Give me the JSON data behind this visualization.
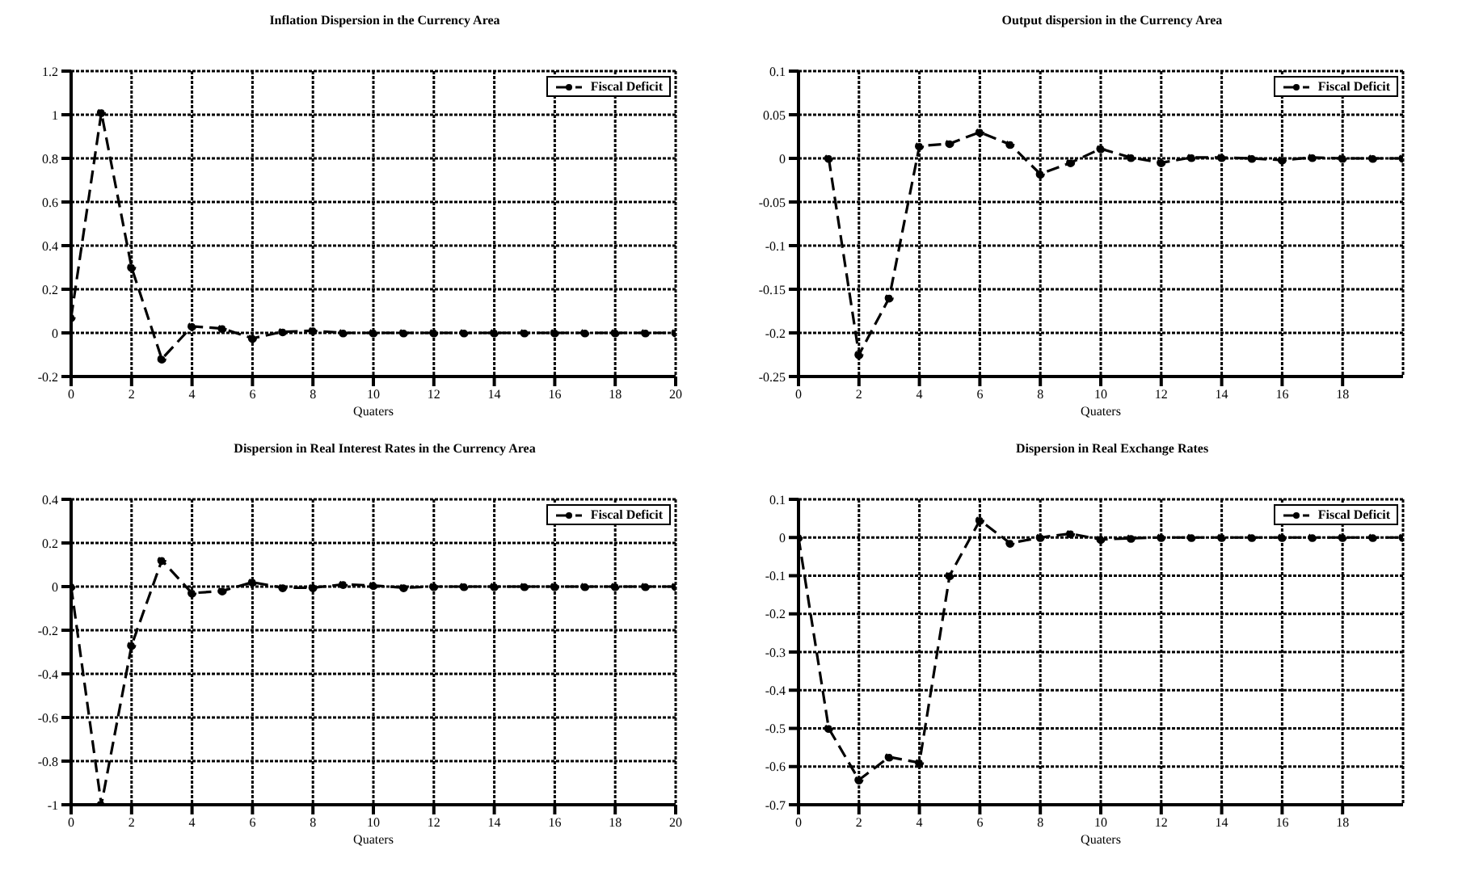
{
  "chart_data": [
    {
      "type": "line",
      "title": "Inflation Dispersion in the Currency Area",
      "xlabel": "Quaters",
      "x": [
        0,
        1,
        2,
        3,
        4,
        5,
        6,
        7,
        8,
        9,
        10,
        11,
        12,
        13,
        14,
        15,
        16,
        17,
        18,
        19,
        20
      ],
      "series": [
        {
          "name": "Fiscal Deficit",
          "color": "#000000",
          "values": [
            0.07,
            1.01,
            0.3,
            -0.12,
            0.03,
            0.02,
            -0.025,
            0.005,
            0.01,
            0,
            0,
            0,
            0,
            0,
            0,
            0,
            0,
            0,
            0,
            0,
            0
          ]
        }
      ],
      "xlim": [
        0,
        20
      ],
      "xticks": [
        0,
        2,
        4,
        6,
        8,
        10,
        12,
        14,
        16,
        18,
        20
      ],
      "ylim": [
        -0.2,
        1.2
      ],
      "yticks": [
        -0.2,
        0,
        0.2,
        0.4,
        0.6,
        0.8,
        1,
        1.2
      ],
      "grid": true,
      "legend": "top right",
      "marker": "circle",
      "line_style": "dashed"
    },
    {
      "type": "line",
      "title": "Output dispersion in the Currency Area",
      "xlabel": "Quaters",
      "x": [
        1,
        2,
        3,
        4,
        5,
        6,
        7,
        8,
        9,
        10,
        11,
        12,
        13,
        14,
        15,
        16,
        17,
        18,
        19,
        20
      ],
      "series": [
        {
          "name": "Fiscal Deficit",
          "color": "#000000",
          "values": [
            0,
            -0.225,
            -0.16,
            0.014,
            0.017,
            0.03,
            0.016,
            -0.018,
            -0.005,
            0.011,
            0.001,
            -0.005,
            0.001,
            0.001,
            0,
            -0.002,
            0.001,
            0,
            0,
            0
          ]
        }
      ],
      "xlim": [
        0,
        20
      ],
      "xticks": [
        0,
        2,
        4,
        6,
        8,
        10,
        12,
        14,
        16,
        18
      ],
      "ylim": [
        -0.25,
        0.1
      ],
      "yticks": [
        -0.25,
        -0.2,
        -0.15,
        -0.1,
        -0.05,
        0,
        0.05,
        0.1
      ],
      "grid": true,
      "legend": "top right",
      "marker": "circle",
      "line_style": "dashed"
    },
    {
      "type": "line",
      "title": "Dispersion in Real Interest Rates in the Currency Area",
      "xlabel": "Quaters",
      "x": [
        0,
        1,
        2,
        3,
        4,
        5,
        6,
        7,
        8,
        9,
        10,
        11,
        12,
        13,
        14,
        15,
        16,
        17,
        18,
        19,
        20
      ],
      "series": [
        {
          "name": "Fiscal Deficit",
          "color": "#000000",
          "values": [
            0,
            -1,
            -0.27,
            0.12,
            -0.03,
            -0.02,
            0.02,
            -0.005,
            -0.005,
            0.01,
            0.005,
            -0.005,
            0,
            0,
            0,
            0,
            0,
            0,
            0,
            0,
            0
          ]
        }
      ],
      "xlim": [
        0,
        20
      ],
      "xticks": [
        0,
        2,
        4,
        6,
        8,
        10,
        12,
        14,
        16,
        18,
        20
      ],
      "ylim": [
        -1,
        0.4
      ],
      "yticks": [
        -1,
        -0.8,
        -0.6,
        -0.4,
        -0.2,
        0,
        0.2,
        0.4
      ],
      "grid": true,
      "legend": "top right",
      "marker": "circle",
      "line_style": "dashed"
    },
    {
      "type": "line",
      "title": "Dispersion in Real Exchange Rates",
      "xlabel": "Quaters",
      "x": [
        0,
        1,
        2,
        3,
        4,
        5,
        6,
        7,
        8,
        9,
        10,
        11,
        12,
        13,
        14,
        15,
        16,
        17,
        18,
        19,
        20
      ],
      "series": [
        {
          "name": "Fiscal Deficit",
          "color": "#000000",
          "values": [
            0,
            -0.5,
            -0.635,
            -0.575,
            -0.59,
            -0.1,
            0.045,
            -0.015,
            0,
            0.01,
            -0.005,
            -0.002,
            0,
            0,
            0,
            0,
            0,
            0,
            0,
            0,
            0
          ]
        }
      ],
      "xlim": [
        0,
        20
      ],
      "xticks": [
        0,
        2,
        4,
        6,
        8,
        10,
        12,
        14,
        16,
        18
      ],
      "ylim": [
        -0.7,
        0.1
      ],
      "yticks": [
        -0.7,
        -0.6,
        -0.5,
        -0.4,
        -0.3,
        -0.2,
        -0.1,
        0,
        0.1
      ],
      "grid": true,
      "legend": "top right",
      "marker": "circle",
      "line_style": "dashed"
    }
  ]
}
